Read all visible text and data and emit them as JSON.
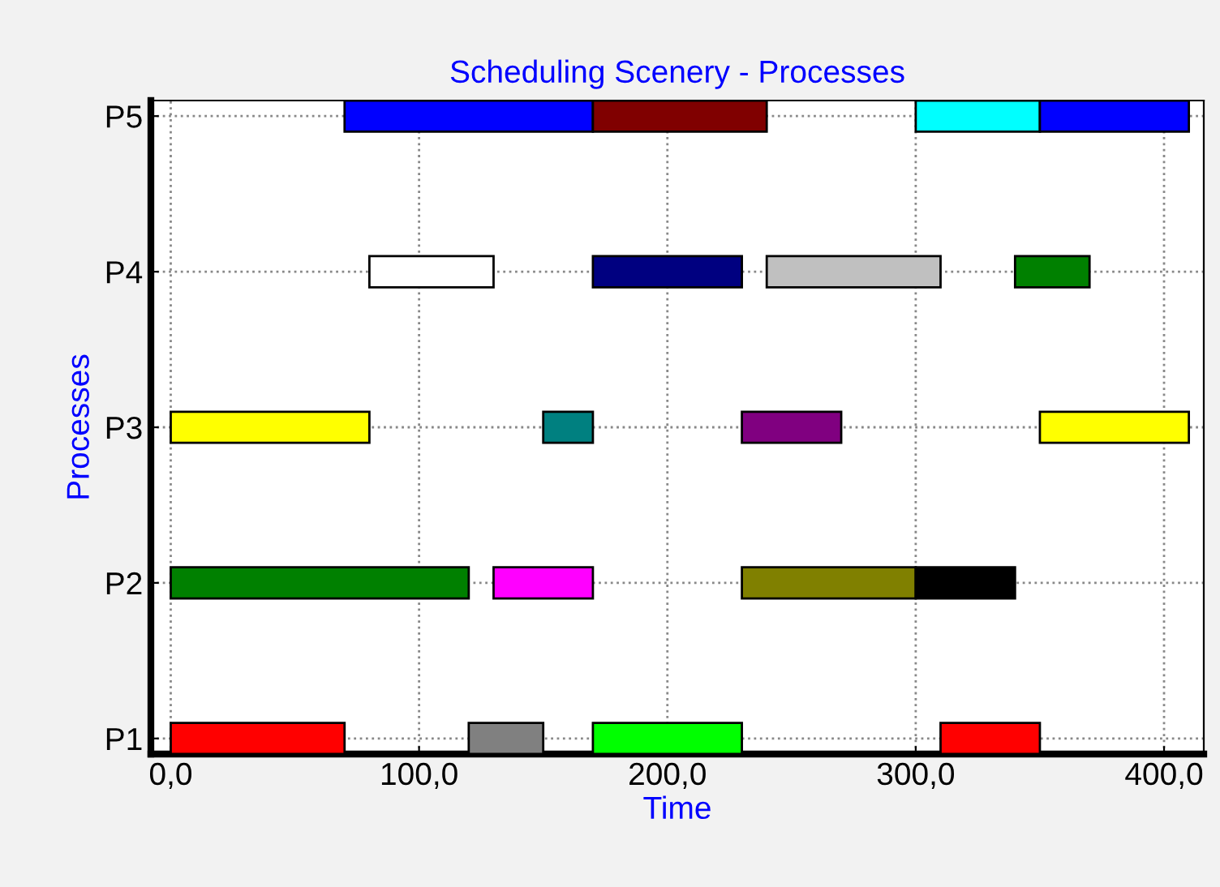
{
  "chart_data": {
    "type": "bar",
    "orientation": "horizontal",
    "title": "Scheduling Scenery - Processes",
    "xlabel": "Time",
    "ylabel": "Processes",
    "categories": [
      "P5",
      "P4",
      "P3",
      "P2",
      "P1"
    ],
    "series": [
      {
        "values": [
          100,
          50,
          80,
          120,
          70
        ],
        "base": [
          70,
          80,
          0,
          0,
          0
        ],
        "colors": [
          "#0000ff",
          "#ffffff",
          "#ffff00",
          "#008000",
          "#ff0000"
        ]
      },
      {
        "values": [
          70,
          60,
          20,
          40,
          30
        ],
        "base": [
          170,
          170,
          150,
          130,
          120
        ],
        "colors": [
          "#800000",
          "#000080",
          "#008080",
          "#ff00ff",
          "#808080"
        ]
      },
      {
        "values": [
          50,
          70,
          40,
          70,
          60
        ],
        "base": [
          300,
          240,
          230,
          230,
          170
        ],
        "colors": [
          "#00ffff",
          "#c0c0c0",
          "#800080",
          "#808000",
          "#00ff00"
        ]
      },
      {
        "values": [
          60,
          30,
          60,
          40,
          40
        ],
        "base": [
          350,
          340,
          350,
          300,
          310
        ],
        "colors": [
          "#0000ff",
          "#008000",
          "#ffff00",
          "#000000",
          "#ff0000"
        ]
      }
    ],
    "xlim": [
      -8,
      416
    ],
    "xticks": [
      {
        "value": 0,
        "label": "0,0"
      },
      {
        "value": 100,
        "label": "100,0"
      },
      {
        "value": 200,
        "label": "200,0"
      },
      {
        "value": 300,
        "label": "300,0"
      },
      {
        "value": 400,
        "label": "400,0"
      }
    ],
    "grid": true
  }
}
